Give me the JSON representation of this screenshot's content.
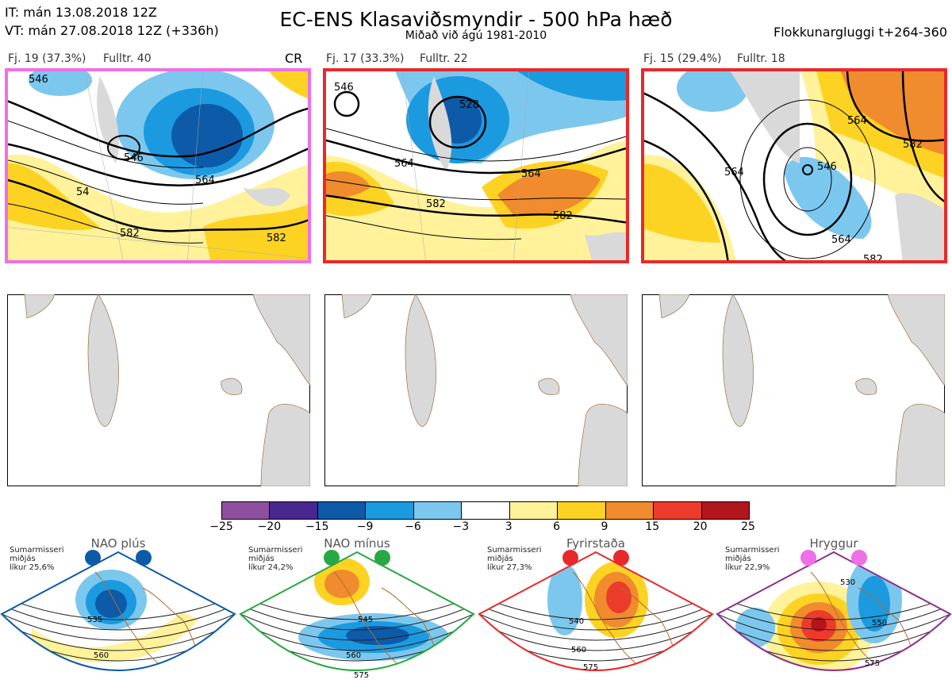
{
  "header": {
    "issue_time": "IT: mán 13.08.2018 12Z",
    "valid_time": "VT: mán 27.08.2018 12Z  (+336h)",
    "title": "EC-ENS Klasaviðsmyndir - 500 hPa hæð",
    "subtitle": "Miðað við ágú 1981-2010",
    "window": "Flokkunargluggi t+264-360"
  },
  "clusters": [
    {
      "label": "Fj. 19 (37.3%)",
      "representative": "Fulltr. 40",
      "tag": "CR",
      "frame_color": "#ee6fe8",
      "contour_labels": [
        "546",
        "564",
        "582",
        "546",
        "582",
        "54"
      ]
    },
    {
      "label": "Fj. 17 (33.3%)",
      "representative": "Fulltr. 22",
      "tag": "",
      "frame_color": "#e8292b",
      "contour_labels": [
        "546",
        "528",
        "564",
        "564",
        "582",
        "582"
      ]
    },
    {
      "label": "Fj. 15 (29.4%)",
      "representative": "Fulltr. 18",
      "tag": "",
      "frame_color": "#e8292b",
      "contour_labels": [
        "564",
        "546",
        "564",
        "564",
        "582",
        "582"
      ]
    }
  ],
  "colorbar": {
    "ticks": [
      "−25",
      "−20",
      "−15",
      "−9",
      "−6",
      "−3",
      "3",
      "6",
      "9",
      "15",
      "20",
      "25"
    ],
    "colors": [
      "#8e4f9e",
      "#48278f",
      "#0d5aa8",
      "#1b9ae0",
      "#7cc7ee",
      "#ffffff",
      "#fff29a",
      "#fdd323",
      "#f08b2e",
      "#ec3b2b",
      "#b3151c"
    ]
  },
  "regimes": [
    {
      "name": "NAO plús",
      "season": "Sumarmisseri",
      "spread": "miðjás",
      "likelihood": "líkur 25,6%",
      "dot_color": "#0d5aa8",
      "frame_color": "#0d5aa8",
      "contour_labels": [
        "535",
        "560"
      ]
    },
    {
      "name": "NAO mínus",
      "season": "Sumarmisseri",
      "spread": "miðjás",
      "likelihood": "líkur 24,2%",
      "dot_color": "#27a844",
      "frame_color": "#27a844",
      "contour_labels": [
        "545",
        "560",
        "575"
      ]
    },
    {
      "name": "Fyrirstaða",
      "season": "Sumarmisseri",
      "spread": "miðjás",
      "likelihood": "líkur 27,3%",
      "dot_color": "#e8292b",
      "frame_color": "#e8292b",
      "contour_labels": [
        "540",
        "560",
        "575"
      ]
    },
    {
      "name": "Hryggur",
      "season": "Sumarmisseri",
      "spread": "miðjás",
      "likelihood": "líkur 22,9%",
      "dot_color": "#ee6fe8",
      "frame_color": "#8e2f8e",
      "contour_labels": [
        "530",
        "550",
        "575"
      ]
    }
  ]
}
